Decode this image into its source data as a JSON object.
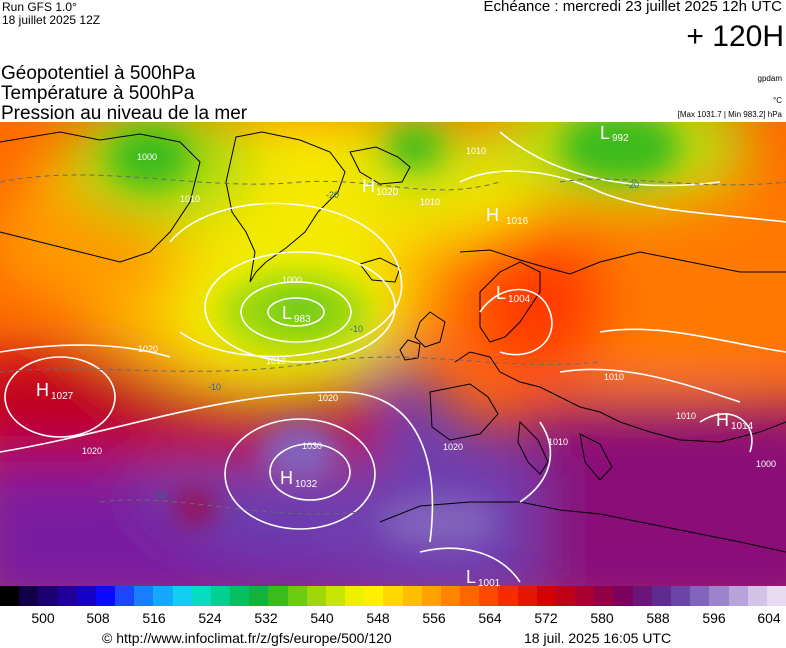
{
  "header": {
    "run": "Run GFS 1.0°",
    "run_date": "18 juillet 2025 12Z",
    "echeance": "Echéance : mercredi 23 juillet 2025 12h UTC",
    "lead": "+ 120H"
  },
  "layers": {
    "line1": "Géopotentiel à 500hPa",
    "line2": "Température à 500hPa",
    "line3": "Pression au niveau de la mer"
  },
  "units": {
    "geopot": "gpdam",
    "temp": "°C",
    "minmax": "[Max 1031.7 | Min 983.2] hPa"
  },
  "map": {
    "pressure_centers": [
      {
        "type": "H",
        "value": "1020"
      },
      {
        "type": "H",
        "value": "1016"
      },
      {
        "type": "L",
        "value": "992"
      },
      {
        "type": "L",
        "value": "983"
      },
      {
        "type": "L",
        "value": "1004"
      },
      {
        "type": "H",
        "value": "1027"
      },
      {
        "type": "H",
        "value": "1032"
      },
      {
        "type": "H",
        "value": "1014"
      },
      {
        "type": "L",
        "value": "1001"
      }
    ],
    "isobar_labels": [
      "1000",
      "1010",
      "1010",
      "1020",
      "1020",
      "1020",
      "1030",
      "1000",
      "1010",
      "1010",
      "1010",
      "1020",
      "1010",
      "1010",
      "1000"
    ],
    "temp_labels": [
      "-20",
      "-20",
      "-10",
      "-10",
      "-10"
    ]
  },
  "colorscale": {
    "tick_labels": [
      "500",
      "508",
      "516",
      "524",
      "532",
      "540",
      "548",
      "556",
      "564",
      "572",
      "580",
      "588",
      "596",
      "604"
    ],
    "colors": [
      "#000000",
      "#10004a",
      "#1a0070",
      "#1f0099",
      "#1400c8",
      "#0a0aff",
      "#1e46ff",
      "#1a7dff",
      "#16a8ff",
      "#10cff0",
      "#06dcc0",
      "#00d090",
      "#06c060",
      "#14b23a",
      "#3cbb1e",
      "#6ccc14",
      "#9ed80a",
      "#c8e604",
      "#eef000",
      "#fff000",
      "#ffd800",
      "#ffbe00",
      "#ffa200",
      "#ff8400",
      "#ff6600",
      "#ff4800",
      "#f72a00",
      "#e81400",
      "#d60000",
      "#c00016",
      "#a80032",
      "#900048",
      "#7c005e",
      "#6a1678",
      "#5e2c90",
      "#6a44a8",
      "#8264bc",
      "#9c84cc",
      "#b8a4da",
      "#d2c4e8",
      "#e8dcf2"
    ]
  },
  "footer": {
    "url": "© http://www.infoclimat.fr/z/gfs/europe/500/120",
    "generated": "18 juil. 2025 16:05 UTC"
  }
}
